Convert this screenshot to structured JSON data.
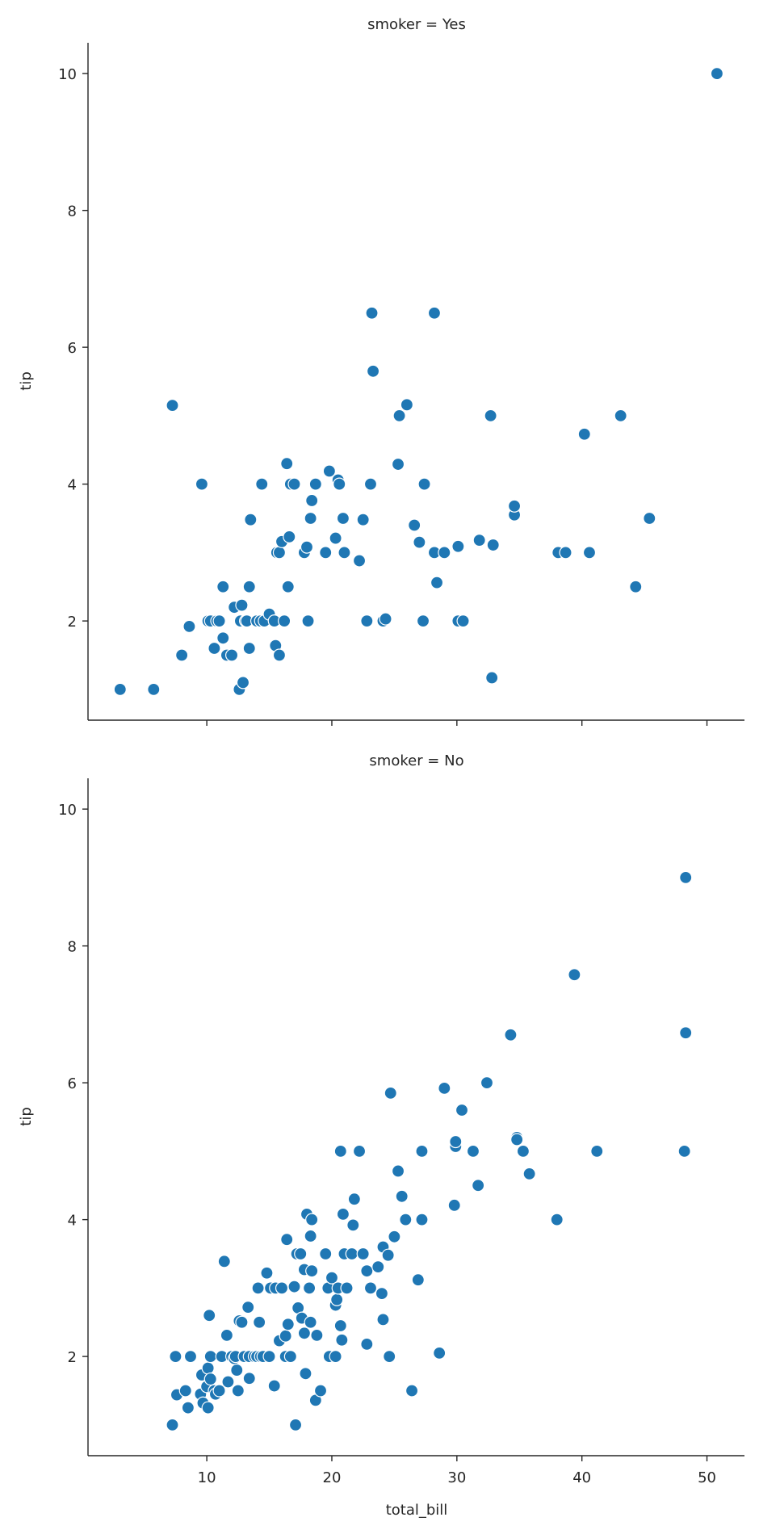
{
  "chart_data": {
    "type": "scatter",
    "xlabel": "total_bill",
    "ylabel": "tip",
    "xlim": [
      0.5,
      53.0
    ],
    "ylim": [
      0.55,
      10.45
    ],
    "xticks": [
      10,
      20,
      30,
      40,
      50
    ],
    "yticks": [
      2,
      4,
      6,
      8,
      10
    ],
    "color": "#1f77b4",
    "facets": [
      {
        "title": "smoker = Yes",
        "show_x_ticklabels": false,
        "points": [
          [
            3.07,
            1.0
          ],
          [
            5.75,
            1.0
          ],
          [
            7.25,
            5.15
          ],
          [
            8.0,
            1.5
          ],
          [
            8.6,
            1.92
          ],
          [
            9.6,
            4.0
          ],
          [
            10.1,
            2.0
          ],
          [
            10.3,
            2.0
          ],
          [
            10.6,
            1.6
          ],
          [
            10.8,
            2.0
          ],
          [
            11.0,
            2.0
          ],
          [
            11.3,
            1.75
          ],
          [
            11.3,
            2.5
          ],
          [
            11.6,
            1.5
          ],
          [
            12.0,
            1.5
          ],
          [
            12.2,
            2.2
          ],
          [
            12.6,
            1.0
          ],
          [
            12.7,
            2.0
          ],
          [
            12.8,
            2.23
          ],
          [
            12.9,
            1.1
          ],
          [
            13.1,
            2.0
          ],
          [
            13.2,
            2.0
          ],
          [
            13.4,
            2.5
          ],
          [
            13.4,
            1.6
          ],
          [
            13.5,
            3.48
          ],
          [
            14.0,
            2.0
          ],
          [
            14.3,
            2.0
          ],
          [
            14.4,
            4.0
          ],
          [
            14.6,
            2.0
          ],
          [
            15.0,
            2.1
          ],
          [
            15.4,
            2.0
          ],
          [
            15.5,
            1.64
          ],
          [
            15.6,
            3.0
          ],
          [
            15.8,
            1.5
          ],
          [
            15.8,
            3.0
          ],
          [
            16.0,
            3.16
          ],
          [
            16.2,
            2.0
          ],
          [
            16.4,
            4.3
          ],
          [
            16.5,
            2.5
          ],
          [
            16.6,
            3.23
          ],
          [
            16.7,
            4.0
          ],
          [
            17.0,
            4.0
          ],
          [
            17.8,
            3.0
          ],
          [
            18.0,
            3.08
          ],
          [
            18.1,
            2.0
          ],
          [
            18.3,
            3.5
          ],
          [
            18.4,
            3.76
          ],
          [
            18.7,
            4.0
          ],
          [
            19.5,
            3.0
          ],
          [
            19.8,
            4.19
          ],
          [
            20.3,
            3.21
          ],
          [
            20.5,
            4.06
          ],
          [
            20.6,
            4.0
          ],
          [
            20.9,
            3.5
          ],
          [
            21.0,
            3.0
          ],
          [
            22.2,
            2.88
          ],
          [
            22.5,
            3.48
          ],
          [
            22.8,
            2.0
          ],
          [
            23.1,
            4.0
          ],
          [
            23.2,
            6.5
          ],
          [
            23.3,
            5.65
          ],
          [
            24.1,
            2.0
          ],
          [
            24.3,
            2.03
          ],
          [
            25.3,
            4.29
          ],
          [
            25.4,
            5.0
          ],
          [
            26.0,
            5.16
          ],
          [
            26.6,
            3.4
          ],
          [
            27.0,
            3.15
          ],
          [
            27.3,
            2.0
          ],
          [
            27.4,
            4.0
          ],
          [
            28.2,
            3.0
          ],
          [
            28.2,
            6.5
          ],
          [
            28.4,
            2.56
          ],
          [
            29.0,
            3.0
          ],
          [
            30.1,
            3.09
          ],
          [
            30.1,
            2.0
          ],
          [
            30.5,
            2.0
          ],
          [
            31.8,
            3.18
          ],
          [
            32.7,
            5.0
          ],
          [
            32.8,
            1.17
          ],
          [
            32.9,
            3.11
          ],
          [
            34.6,
            3.55
          ],
          [
            34.6,
            3.68
          ],
          [
            38.1,
            3.0
          ],
          [
            38.7,
            3.0
          ],
          [
            40.2,
            4.73
          ],
          [
            40.6,
            3.0
          ],
          [
            43.1,
            5.0
          ],
          [
            44.3,
            2.5
          ],
          [
            45.4,
            3.5
          ],
          [
            50.8,
            10.0
          ]
        ]
      },
      {
        "title": "smoker = No",
        "show_x_ticklabels": true,
        "points": [
          [
            7.25,
            1.0
          ],
          [
            7.5,
            2.0
          ],
          [
            7.6,
            1.44
          ],
          [
            8.3,
            1.5
          ],
          [
            8.5,
            1.25
          ],
          [
            8.7,
            2.0
          ],
          [
            9.5,
            1.45
          ],
          [
            9.6,
            1.73
          ],
          [
            9.7,
            1.32
          ],
          [
            10.0,
            1.56
          ],
          [
            10.1,
            1.83
          ],
          [
            10.1,
            1.25
          ],
          [
            10.2,
            2.6
          ],
          [
            10.3,
            1.67
          ],
          [
            10.3,
            2.0
          ],
          [
            10.6,
            1.5
          ],
          [
            10.7,
            1.45
          ],
          [
            11.0,
            1.5
          ],
          [
            11.2,
            2.0
          ],
          [
            11.4,
            3.39
          ],
          [
            11.6,
            2.31
          ],
          [
            11.7,
            1.63
          ],
          [
            12.0,
            2.0
          ],
          [
            12.2,
            1.97
          ],
          [
            12.3,
            2.0
          ],
          [
            12.4,
            1.8
          ],
          [
            12.5,
            1.5
          ],
          [
            12.6,
            2.52
          ],
          [
            12.8,
            2.5
          ],
          [
            13.0,
            2.0
          ],
          [
            13.3,
            2.72
          ],
          [
            13.4,
            2.0
          ],
          [
            13.4,
            1.68
          ],
          [
            13.8,
            2.0
          ],
          [
            14.0,
            2.0
          ],
          [
            14.1,
            3.0
          ],
          [
            14.2,
            2.5
          ],
          [
            14.3,
            2.0
          ],
          [
            14.5,
            2.0
          ],
          [
            14.8,
            3.22
          ],
          [
            15.0,
            2.0
          ],
          [
            15.1,
            3.0
          ],
          [
            15.4,
            1.57
          ],
          [
            15.5,
            3.0
          ],
          [
            15.8,
            2.23
          ],
          [
            16.0,
            3.0
          ],
          [
            16.3,
            2.0
          ],
          [
            16.3,
            2.3
          ],
          [
            16.4,
            3.71
          ],
          [
            16.5,
            2.47
          ],
          [
            16.7,
            2.0
          ],
          [
            17.0,
            3.02
          ],
          [
            17.1,
            1.0
          ],
          [
            17.2,
            3.5
          ],
          [
            17.3,
            2.71
          ],
          [
            17.5,
            3.5
          ],
          [
            17.6,
            2.56
          ],
          [
            17.8,
            3.27
          ],
          [
            17.8,
            2.34
          ],
          [
            17.9,
            1.75
          ],
          [
            18.0,
            4.08
          ],
          [
            18.2,
            3.0
          ],
          [
            18.3,
            3.76
          ],
          [
            18.3,
            2.5
          ],
          [
            18.4,
            3.25
          ],
          [
            18.4,
            4.0
          ],
          [
            18.7,
            1.36
          ],
          [
            18.8,
            2.31
          ],
          [
            19.1,
            1.5
          ],
          [
            19.5,
            3.5
          ],
          [
            19.7,
            3.0
          ],
          [
            19.8,
            2.0
          ],
          [
            20.0,
            3.15
          ],
          [
            20.3,
            2.0
          ],
          [
            20.3,
            2.75
          ],
          [
            20.4,
            2.83
          ],
          [
            20.5,
            3.0
          ],
          [
            20.7,
            5.0
          ],
          [
            20.7,
            2.45
          ],
          [
            20.8,
            2.24
          ],
          [
            20.9,
            4.08
          ],
          [
            21.0,
            3.5
          ],
          [
            21.2,
            3.0
          ],
          [
            21.6,
            3.5
          ],
          [
            21.7,
            3.92
          ],
          [
            21.8,
            4.3
          ],
          [
            22.2,
            5.0
          ],
          [
            22.5,
            3.5
          ],
          [
            22.8,
            3.25
          ],
          [
            22.8,
            2.18
          ],
          [
            23.1,
            3.0
          ],
          [
            23.7,
            3.31
          ],
          [
            24.0,
            2.92
          ],
          [
            24.1,
            3.6
          ],
          [
            24.1,
            2.54
          ],
          [
            24.5,
            3.48
          ],
          [
            24.6,
            2.0
          ],
          [
            24.7,
            5.85
          ],
          [
            25.0,
            3.75
          ],
          [
            25.3,
            4.71
          ],
          [
            25.6,
            4.34
          ],
          [
            25.9,
            4.0
          ],
          [
            26.4,
            1.5
          ],
          [
            26.9,
            3.12
          ],
          [
            27.2,
            4.0
          ],
          [
            27.2,
            5.0
          ],
          [
            28.6,
            2.05
          ],
          [
            29.0,
            5.92
          ],
          [
            29.8,
            4.21
          ],
          [
            29.9,
            5.07
          ],
          [
            29.9,
            5.14
          ],
          [
            30.4,
            5.6
          ],
          [
            31.3,
            5.0
          ],
          [
            31.7,
            4.5
          ],
          [
            32.4,
            6.0
          ],
          [
            34.3,
            6.7
          ],
          [
            34.8,
            5.2
          ],
          [
            34.8,
            5.17
          ],
          [
            35.3,
            5.0
          ],
          [
            35.8,
            4.67
          ],
          [
            38.0,
            4.0
          ],
          [
            39.4,
            7.58
          ],
          [
            41.2,
            5.0
          ],
          [
            48.3,
            9.0
          ],
          [
            48.3,
            6.73
          ],
          [
            48.2,
            5.0
          ]
        ]
      }
    ]
  }
}
